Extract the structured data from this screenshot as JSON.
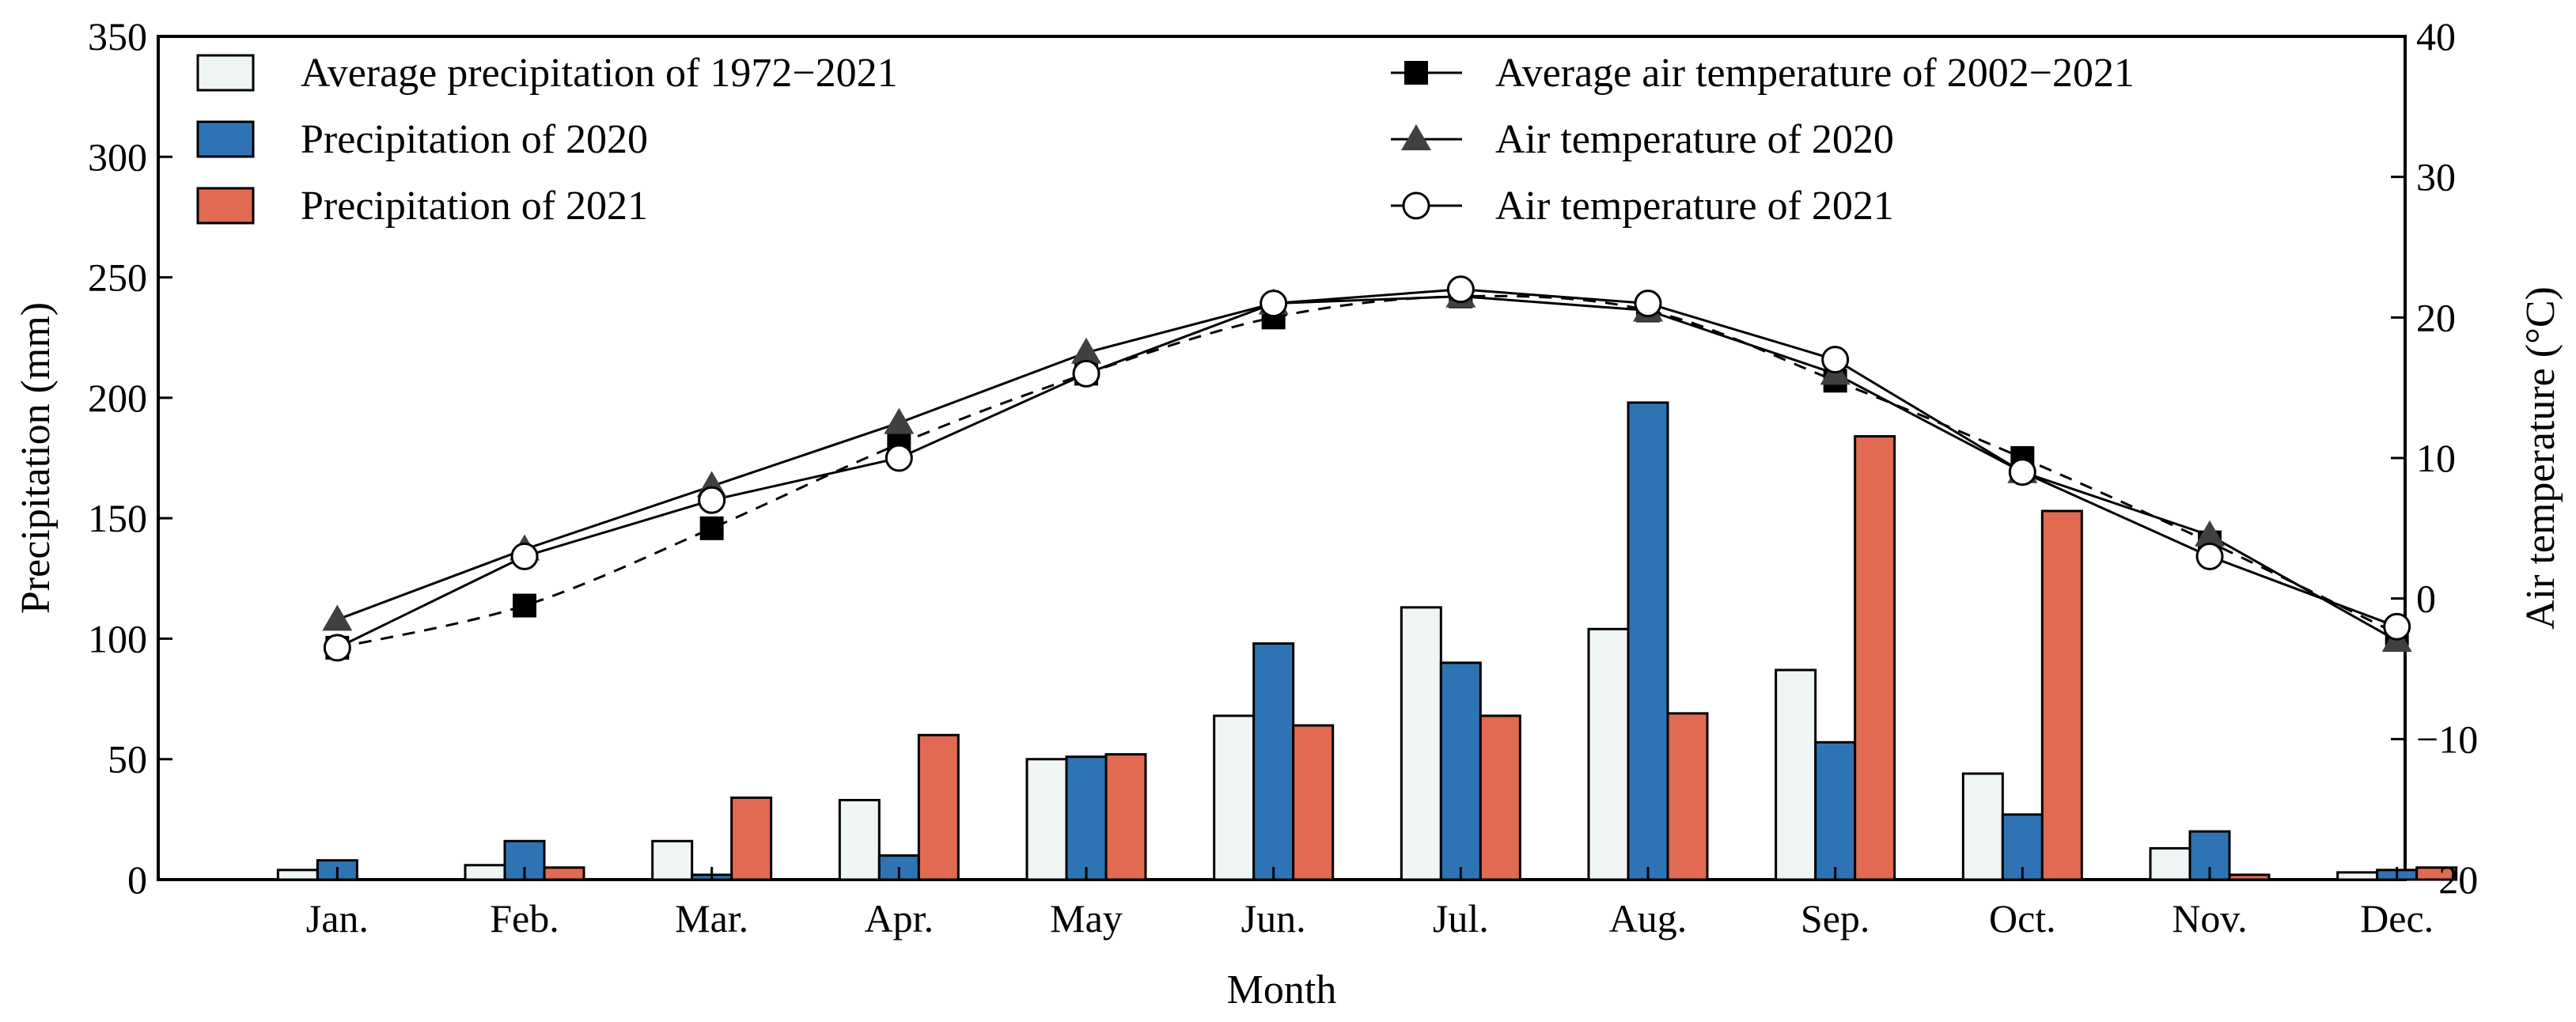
{
  "chart_data": {
    "type": "bar+line",
    "title": "",
    "xlabel": "Month",
    "ylabel_left": "Precipitation (mm)",
    "ylabel_right": "Air temperature (°C)",
    "ylim_left": [
      0,
      350
    ],
    "ylim_right": [
      -20,
      40
    ],
    "yticks_left": [
      "0",
      "50",
      "100",
      "150",
      "200",
      "250",
      "300",
      "350"
    ],
    "yticks_right": [
      "−20",
      "−10",
      "0",
      "10",
      "20",
      "30",
      "40"
    ],
    "yticks_left_values": [
      0,
      50,
      100,
      150,
      200,
      250,
      300,
      350
    ],
    "yticks_right_values": [
      -20,
      -10,
      0,
      10,
      20,
      30,
      40
    ],
    "categories": [
      "Jan.",
      "Feb.",
      "Mar.",
      "Apr.",
      "May",
      "Jun.",
      "Jul.",
      "Aug.",
      "Sep.",
      "Oct.",
      "Nov.",
      "Dec."
    ],
    "bar_series": [
      {
        "name": "Average precipitation of 1972−2021",
        "color": "#eef5f4",
        "values": [
          4,
          6,
          16,
          33,
          50,
          68,
          113,
          104,
          87,
          44,
          13,
          3
        ]
      },
      {
        "name": "Precipitation of 2020",
        "color": "#2e74b5",
        "values": [
          8,
          16,
          2,
          10,
          51,
          98,
          90,
          198,
          57,
          27,
          20,
          4
        ]
      },
      {
        "name": "Precipitation of 2021",
        "color": "#e06a52",
        "values": [
          0,
          5,
          34,
          60,
          52,
          64,
          68,
          69,
          184,
          153,
          2,
          5
        ]
      }
    ],
    "line_series": [
      {
        "name": "Average air temperature of 2002−2021",
        "marker": "square",
        "line": "dashed",
        "values": [
          -3.5,
          -0.5,
          5,
          11,
          16,
          20,
          21.5,
          20.5,
          15.5,
          10,
          4,
          -2.5
        ]
      },
      {
        "name": "Air temperature of 2020",
        "marker": "triangle",
        "line": "solid",
        "values": [
          -1.5,
          3.5,
          8,
          12.5,
          17.5,
          21,
          21.5,
          20.5,
          16,
          9,
          4.5,
          -3
        ]
      },
      {
        "name": "Air temperature of 2021",
        "marker": "circle-open",
        "line": "solid",
        "values": [
          -3.5,
          3,
          7,
          10,
          16,
          21,
          22,
          21,
          17,
          9,
          3,
          -2
        ]
      }
    ],
    "legend": "top (two columns)",
    "grid": false
  }
}
